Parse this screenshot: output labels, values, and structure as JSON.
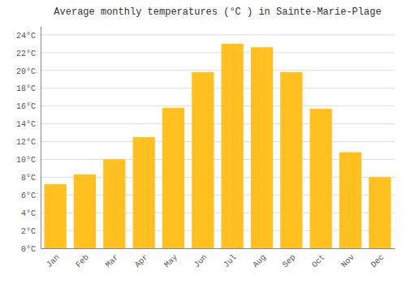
{
  "chart_data": {
    "type": "bar",
    "title": "Average monthly temperatures (°C ) in Sainte-Marie-Plage",
    "categories": [
      "Jan",
      "Feb",
      "Mar",
      "Apr",
      "May",
      "Jun",
      "Jul",
      "Aug",
      "Sep",
      "Oct",
      "Nov",
      "Dec"
    ],
    "values": [
      7.2,
      8.3,
      10.0,
      12.5,
      15.8,
      19.8,
      23.0,
      22.6,
      19.8,
      15.7,
      10.8,
      8.0
    ],
    "color": "#FFC020",
    "ylim": [
      0,
      25
    ],
    "yticks": [
      {
        "value": 0,
        "label": "0°C"
      },
      {
        "value": 2,
        "label": "2°C"
      },
      {
        "value": 4,
        "label": "4°C"
      },
      {
        "value": 6,
        "label": "6°C"
      },
      {
        "value": 8,
        "label": "8°C"
      },
      {
        "value": 10,
        "label": "10°C"
      },
      {
        "value": 12,
        "label": "12°C"
      },
      {
        "value": 14,
        "label": "14°C"
      },
      {
        "value": 16,
        "label": "16°C"
      },
      {
        "value": 18,
        "label": "18°C"
      },
      {
        "value": 20,
        "label": "20°C"
      },
      {
        "value": 22,
        "label": "22°C"
      },
      {
        "value": 24,
        "label": "24°C"
      }
    ],
    "grid": true
  }
}
